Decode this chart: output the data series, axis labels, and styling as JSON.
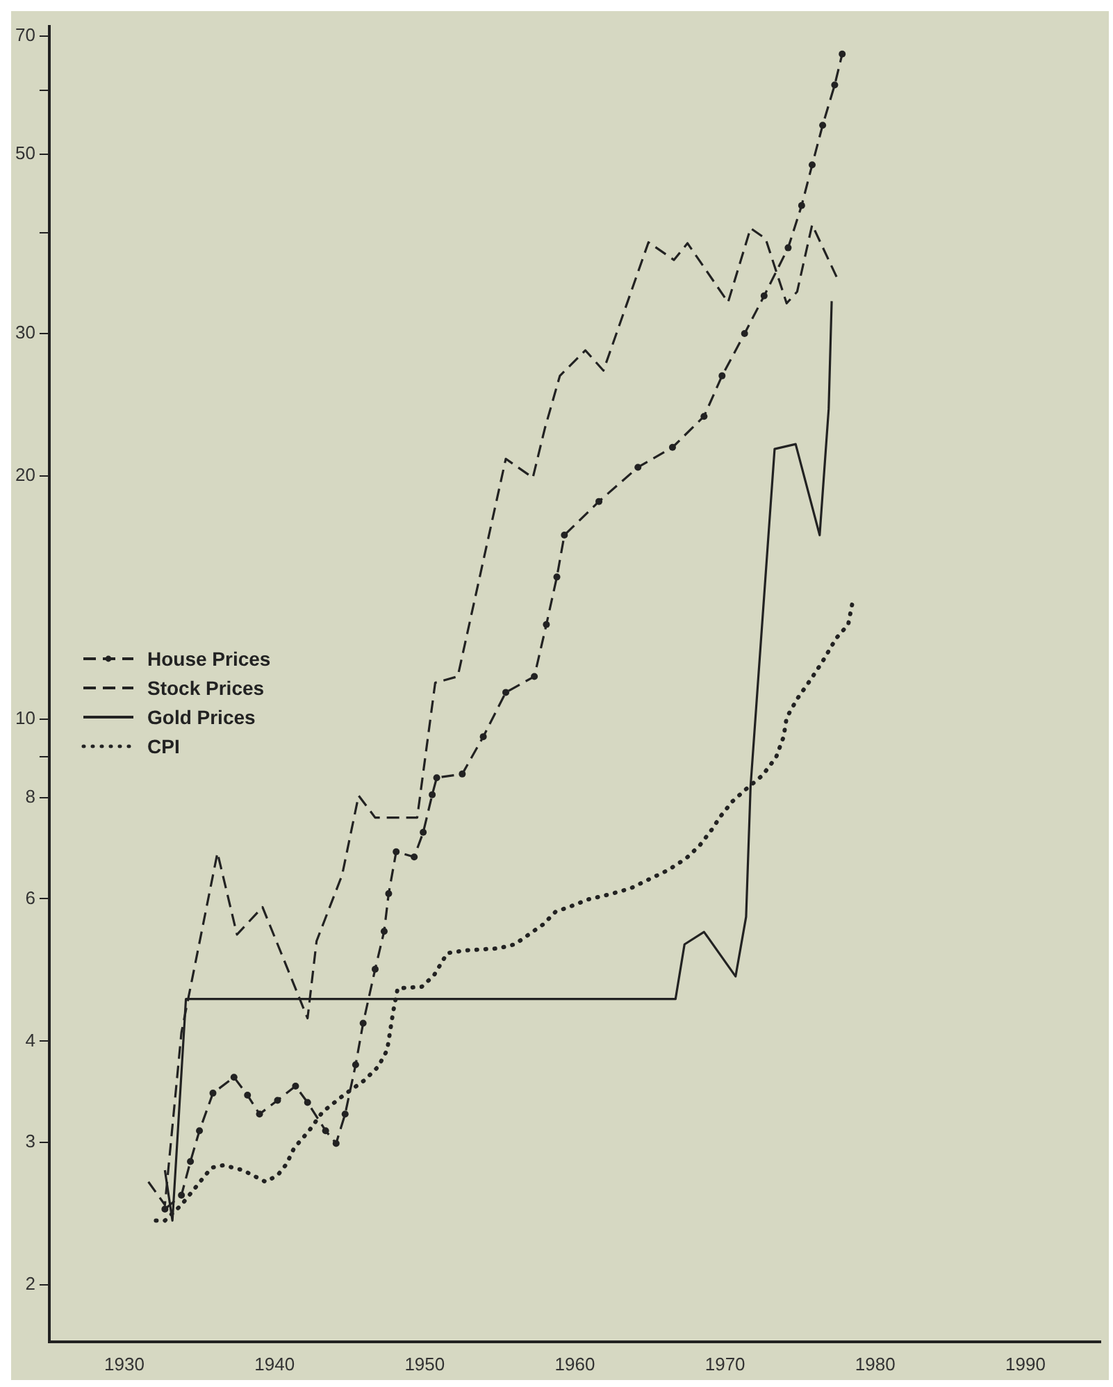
{
  "chart_data": {
    "type": "line",
    "xlim": [
      1925,
      1995
    ],
    "xticks": [
      1930,
      1940,
      1950,
      1960,
      1970,
      1980,
      1990
    ],
    "ylim": [
      1.7,
      72
    ],
    "log": "y",
    "yticks": [
      2,
      3,
      4,
      6,
      8,
      {
        "value": 9,
        "label": null
      },
      10,
      20,
      30,
      {
        "value": 40,
        "label": null
      },
      50,
      {
        "value": 60,
        "label": null
      },
      70
    ],
    "grid": false,
    "legend": "left",
    "series": [
      {
        "name": "House Prices",
        "color": "#222222",
        "line_style": "dashed",
        "marker": "circle",
        "x": [
          1932.7,
          1933.8,
          1934.4,
          1935,
          1935.9,
          1937.3,
          1938.2,
          1939,
          1940.2,
          1941.4,
          1942.2,
          1943.4,
          1944.1,
          1944.7,
          1945.4,
          1945.9,
          1946.7,
          1947.3,
          1947.6,
          1948.1,
          1949.3,
          1949.9,
          1950.5,
          1950.8,
          1952.5,
          1953.9,
          1955.4,
          1957.3,
          1958.1,
          1958.8,
          1959.3,
          1961.6,
          1964.2,
          1966.5,
          1968.6,
          1969.8,
          1971.3,
          1972.6,
          1974.2,
          1975.1,
          1975.8,
          1976.5,
          1977.3,
          1977.8
        ],
        "values": [
          2.48,
          2.58,
          2.84,
          3.1,
          3.45,
          3.61,
          3.43,
          3.25,
          3.38,
          3.52,
          3.36,
          3.1,
          2.99,
          3.25,
          3.74,
          4.21,
          4.91,
          5.47,
          6.09,
          6.86,
          6.76,
          7.25,
          8.07,
          8.47,
          8.56,
          9.52,
          10.8,
          11.3,
          13.1,
          15,
          16.9,
          18.6,
          20.5,
          21.7,
          23.7,
          26.6,
          30,
          33.4,
          38.3,
          43.2,
          48.5,
          54.3,
          60.9,
          66.5
        ]
      },
      {
        "name": "Stock Prices",
        "color": "#222222",
        "line_style": "dashed",
        "marker": "none",
        "x": [
          1931.6,
          1932.7,
          1933.8,
          1936.2,
          1937.5,
          1939.2,
          1942.2,
          1942.8,
          1944.5,
          1945.6,
          1946.7,
          1949.5,
          1950.7,
          1952.2,
          1955.4,
          1957.2,
          1958,
          1959,
          1960.7,
          1961.9,
          1964.9,
          1966.6,
          1967.5,
          1970.2,
          1971.7,
          1972.7,
          1974.1,
          1974.8,
          1975.8,
          1977.6
        ],
        "values": [
          2.68,
          2.51,
          4.1,
          6.84,
          5.42,
          5.86,
          4.27,
          5.32,
          6.42,
          8.05,
          7.56,
          7.56,
          11.1,
          11.3,
          21,
          19.9,
          22.9,
          26.6,
          28.6,
          27,
          38.9,
          37,
          38.8,
          32.8,
          40.5,
          39.3,
          32.7,
          33.8,
          40.9,
          34.7
        ]
      },
      {
        "name": "Gold Prices",
        "color": "#222222",
        "line_style": "solid",
        "marker": "none",
        "x": [
          1932.7,
          1933.2,
          1934.1,
          1966.7,
          1967.3,
          1968.6,
          1970.7,
          1971.4,
          1971.7,
          1973.3,
          1974.7,
          1976.3,
          1976.9,
          1977.1
        ],
        "values": [
          2.77,
          2.4,
          4.51,
          4.51,
          5.27,
          5.46,
          4.81,
          5.7,
          8.27,
          21.6,
          21.9,
          16.9,
          24.2,
          32.9
        ]
      },
      {
        "name": "CPI",
        "color": "#222222",
        "line_style": "dotted",
        "marker": "none",
        "x": [
          1932.1,
          1932.7,
          1933.8,
          1935.8,
          1936.6,
          1937.9,
          1939.4,
          1940.2,
          1940.8,
          1941.3,
          1942.3,
          1943.2,
          1944.6,
          1946,
          1946.9,
          1947.5,
          1947.9,
          1948.2,
          1949.8,
          1950.6,
          1951.5,
          1952.7,
          1954.9,
          1956,
          1957.9,
          1958.7,
          1959.8,
          1960.9,
          1962.2,
          1963.7,
          1965,
          1966.2,
          1967.4,
          1968.3,
          1969.1,
          1969.7,
          1970.5,
          1971.4,
          1972.5,
          1973.4,
          1973.9,
          1974.1,
          1974.8,
          1975.7,
          1976.5,
          1977.4,
          1978.2,
          1978.5
        ],
        "values": [
          2.4,
          2.4,
          2.51,
          2.79,
          2.81,
          2.77,
          2.68,
          2.73,
          2.82,
          2.95,
          3.1,
          3.27,
          3.43,
          3.58,
          3.72,
          3.9,
          4.35,
          4.65,
          4.67,
          4.82,
          5.14,
          5.18,
          5.21,
          5.27,
          5.58,
          5.78,
          5.88,
          5.99,
          6.07,
          6.18,
          6.35,
          6.51,
          6.73,
          6.98,
          7.3,
          7.59,
          7.92,
          8.2,
          8.53,
          8.98,
          9.52,
          10.05,
          10.6,
          11.2,
          11.8,
          12.6,
          13.1,
          14
        ]
      }
    ]
  }
}
